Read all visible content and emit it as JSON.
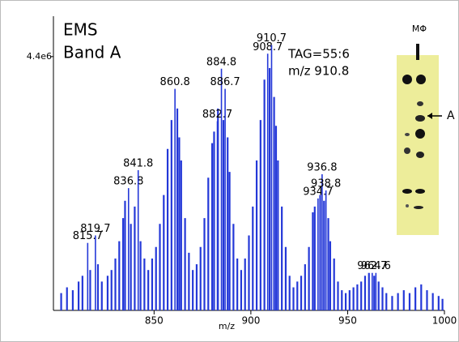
{
  "chart_data": {
    "type": "spectrum",
    "title": "EMS",
    "subtitle": "Band A",
    "annotations": [
      "TAG=55:6",
      "m/z 910.8"
    ],
    "x_label": "m/z",
    "inset_label": "MΦ",
    "inset_marker": "A",
    "color": "#2438d8",
    "xlim": [
      798,
      1000
    ],
    "xticks": [
      850,
      900,
      950,
      1000
    ],
    "ylim": [
      0,
      5100000
    ],
    "yticks": [
      {
        "value": 4400000,
        "label": "4.4e6"
      }
    ],
    "peaks": {
      "x": [
        815.7,
        819.7,
        836.8,
        841.8,
        860.8,
        882.7,
        884.8,
        886.7,
        908.7,
        910.7,
        934.7,
        936.8,
        938.8,
        962.7,
        964.6
      ],
      "values": [
        1170000,
        1300000,
        2120000,
        2430000,
        3840000,
        3280000,
        4190000,
        3840000,
        4450000,
        4600000,
        1940000,
        2360000,
        2080000,
        650000,
        650000
      ]
    },
    "x": [
      802,
      805,
      808,
      811,
      813,
      817,
      821,
      823,
      826,
      828,
      830,
      832,
      834,
      835,
      838,
      840,
      843,
      845,
      847,
      849,
      851,
      853,
      855,
      857,
      859,
      862,
      863,
      864,
      866,
      868,
      870,
      872,
      874,
      876,
      878,
      880,
      881,
      883,
      885.8,
      888,
      889,
      891,
      893,
      895,
      897,
      899,
      901,
      903,
      905,
      907,
      909.7,
      912,
      913,
      914,
      916,
      918,
      920,
      922,
      924,
      926,
      928,
      930,
      932,
      933,
      935.8,
      937.8,
      940,
      941,
      943,
      945,
      947,
      949,
      951,
      953,
      955,
      957,
      959,
      961,
      963.7,
      966,
      968,
      970,
      973,
      976,
      979,
      982,
      985,
      988,
      991,
      994,
      997,
      999
    ],
    "values": [
      300000,
      400000,
      350000,
      500000,
      600000,
      700000,
      800000,
      500000,
      600000,
      700000,
      900000,
      1200000,
      1600000,
      1900000,
      1500000,
      1800000,
      1200000,
      900000,
      700000,
      900000,
      1100000,
      1500000,
      2000000,
      2800000,
      3300000,
      3500000,
      3000000,
      2600000,
      1600000,
      1000000,
      700000,
      800000,
      1100000,
      1600000,
      2300000,
      2900000,
      3100000,
      3500000,
      3300000,
      3000000,
      2400000,
      1500000,
      900000,
      700000,
      900000,
      1300000,
      1800000,
      2600000,
      3300000,
      4000000,
      4200000,
      3700000,
      3200000,
      2600000,
      1800000,
      1100000,
      600000,
      400000,
      500000,
      600000,
      800000,
      1100000,
      1700000,
      1800000,
      2000000,
      1900000,
      1600000,
      1200000,
      900000,
      500000,
      350000,
      300000,
      350000,
      400000,
      450000,
      500000,
      600000,
      650000,
      600000,
      500000,
      400000,
      300000,
      250000,
      300000,
      350000,
      300000,
      400000,
      450000,
      350000,
      300000,
      250000,
      200000
    ]
  }
}
